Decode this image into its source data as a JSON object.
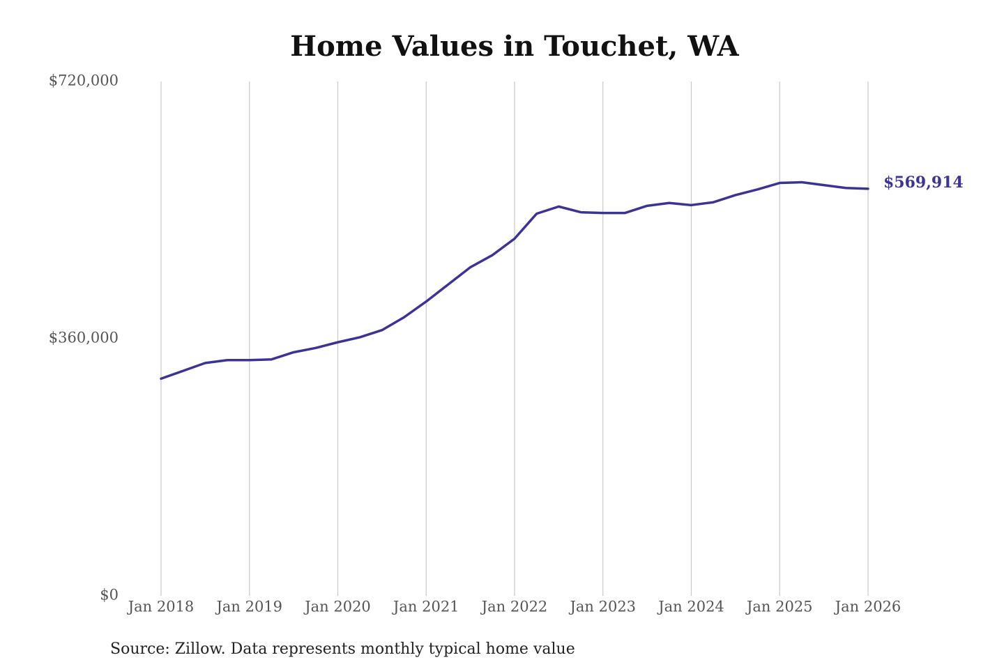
{
  "chart_data": {
    "type": "line",
    "title": "Home Values in Touchet, WA",
    "source": "Source: Zillow. Data represents monthly typical home value",
    "x": [
      "Jan 2018",
      "Apr 2018",
      "Jul 2018",
      "Oct 2018",
      "Jan 2019",
      "Apr 2019",
      "Jul 2019",
      "Oct 2019",
      "Jan 2020",
      "Apr 2020",
      "Jul 2020",
      "Oct 2020",
      "Jan 2021",
      "Apr 2021",
      "Jul 2021",
      "Oct 2021",
      "Jan 2022",
      "Apr 2022",
      "Jul 2022",
      "Oct 2022",
      "Jan 2023",
      "Apr 2023",
      "Jul 2023",
      "Oct 2023",
      "Jan 2024",
      "Apr 2024",
      "Jul 2024",
      "Oct 2024",
      "Jan 2025",
      "Apr 2025",
      "Jul 2025",
      "Oct 2025",
      "Jan 2026"
    ],
    "series": [
      {
        "name": "Home value",
        "color": "#3b3494",
        "values": [
          304000,
          315000,
          326000,
          330000,
          330000,
          331000,
          341000,
          347000,
          355000,
          362000,
          372000,
          390000,
          412000,
          436000,
          460000,
          477000,
          500000,
          535000,
          545000,
          537000,
          536000,
          536000,
          546000,
          550000,
          547000,
          551000,
          561000,
          569000,
          578000,
          579000,
          575000,
          571000,
          569914
        ],
        "value_labels": [
          null,
          null,
          null,
          null,
          null,
          null,
          null,
          null,
          null,
          null,
          null,
          null,
          null,
          null,
          null,
          null,
          null,
          null,
          null,
          null,
          null,
          null,
          null,
          null,
          null,
          null,
          null,
          null,
          null,
          null,
          null,
          null,
          "$569,914"
        ]
      }
    ],
    "ylim": [
      0,
      720000
    ],
    "yticks": [
      {
        "value": 0,
        "label": "$0"
      },
      {
        "value": 360000,
        "label": "$360,000"
      },
      {
        "value": 720000,
        "label": "$720,000"
      }
    ],
    "xticks": [
      "Jan 2018",
      "Jan 2019",
      "Jan 2020",
      "Jan 2021",
      "Jan 2022",
      "Jan 2023",
      "Jan 2024",
      "Jan 2025",
      "Jan 2026"
    ],
    "grid": "x"
  }
}
